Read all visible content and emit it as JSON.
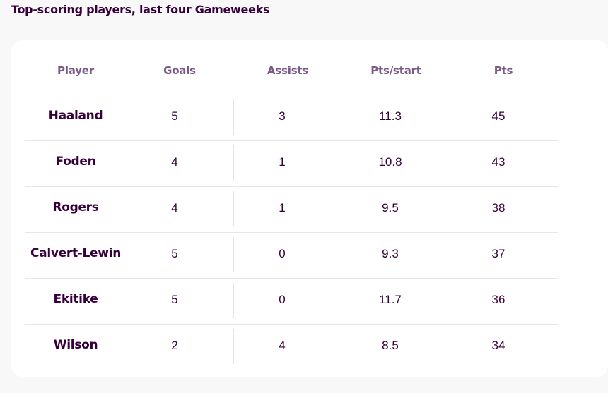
{
  "heading": "Top-scoring players, last four Gameweeks",
  "table": {
    "columns": {
      "player": "Player",
      "goals": "Goals",
      "assists": "Assists",
      "pts_start": "Pts/start",
      "pts": "Pts"
    },
    "rows": [
      {
        "player": "Haaland",
        "goals": "5",
        "assists": "3",
        "pts_start": "11.3",
        "pts": "45"
      },
      {
        "player": "Foden",
        "goals": "4",
        "assists": "1",
        "pts_start": "10.8",
        "pts": "43"
      },
      {
        "player": "Rogers",
        "goals": "4",
        "assists": "1",
        "pts_start": "9.5",
        "pts": "38"
      },
      {
        "player": "Calvert-Lewin",
        "goals": "5",
        "assists": "0",
        "pts_start": "9.3",
        "pts": "37"
      },
      {
        "player": "Ekitike",
        "goals": "5",
        "assists": "0",
        "pts_start": "11.7",
        "pts": "36"
      },
      {
        "player": "Wilson",
        "goals": "2",
        "assists": "4",
        "pts_start": "8.5",
        "pts": "34"
      }
    ]
  },
  "colors": {
    "text_primary": "#37003c",
    "header_text": "#7a5a86",
    "background": "#f8f8f8",
    "card": "#ffffff",
    "divider": "#e4e4e4"
  }
}
